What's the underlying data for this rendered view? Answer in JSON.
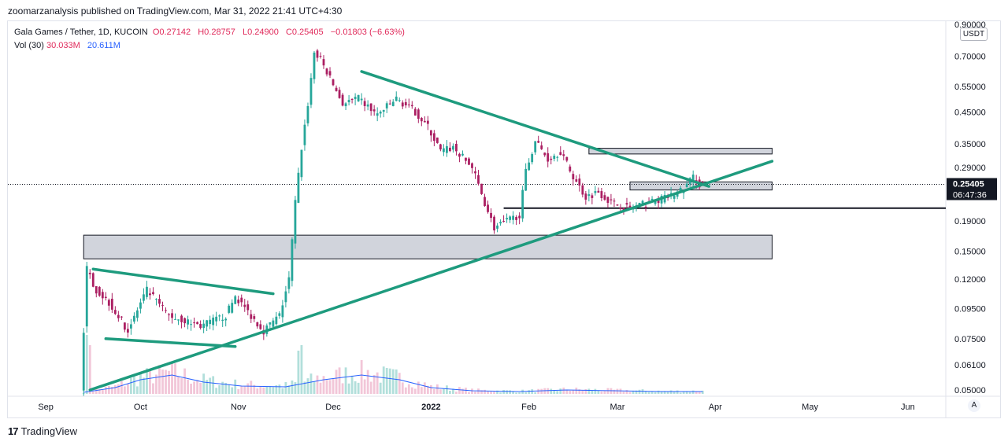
{
  "header": {
    "published": "zoomarzanalysis published on TradingView.com, Mar 31, 2022 21:41 UTC+4:30"
  },
  "legend": {
    "symbol": "Gala Games / Tether, 1D, KUCOIN",
    "open": "O0.27142",
    "high": "H0.28757",
    "low": "L0.24900",
    "close": "C0.25405",
    "change": "−0.01803 (−6.63%)",
    "volume_label": "Vol (30)",
    "volume_value": "30.033M",
    "volume_ma": "20.611M"
  },
  "price_axis": {
    "unit": "USDT",
    "last_price": "0.25405",
    "countdown": "06:47:36",
    "auto_label": "A"
  },
  "footer": {
    "brand": "TradingView",
    "mark": "17"
  },
  "colors": {
    "up": "#26a69a",
    "down": "#ab1f62",
    "trendline": "#1e9b7e",
    "zone_fill": "#d1d4dc",
    "volume_ma": "#2962ff",
    "price_badge": "#131722"
  },
  "chart_data": {
    "type": "candlestick",
    "title": "Gala Games / Tether, 1D, KUCOIN",
    "y_scale": "log",
    "ylim": [
      0.05,
      0.9
    ],
    "y_ticks": [
      "0.90000",
      "0.70000",
      "0.55000",
      "0.45000",
      "0.35000",
      "0.29000",
      "0.19000",
      "0.15000",
      "0.12000",
      "0.09500",
      "0.07500",
      "0.06100",
      "0.05000"
    ],
    "x_labels": [
      {
        "label": "Sep",
        "day": 0
      },
      {
        "label": "Oct",
        "day": 30
      },
      {
        "label": "Nov",
        "day": 61
      },
      {
        "label": "Dec",
        "day": 91
      },
      {
        "label": "2022",
        "day": 122
      },
      {
        "label": "Feb",
        "day": 153
      },
      {
        "label": "Mar",
        "day": 181
      },
      {
        "label": "Apr",
        "day": 212
      },
      {
        "label": "May",
        "day": 242
      },
      {
        "label": "Jun",
        "day": 273
      }
    ],
    "x_domain_days": [
      -12,
      285
    ],
    "start_day": 12,
    "last_price": 0.25405,
    "price_path": [
      {
        "day": 12,
        "price": 0.05
      },
      {
        "day": 14,
        "price": 0.13
      },
      {
        "day": 17,
        "price": 0.11
      },
      {
        "day": 21,
        "price": 0.1
      },
      {
        "day": 27,
        "price": 0.08
      },
      {
        "day": 33,
        "price": 0.11
      },
      {
        "day": 40,
        "price": 0.09
      },
      {
        "day": 50,
        "price": 0.083
      },
      {
        "day": 58,
        "price": 0.09
      },
      {
        "day": 61,
        "price": 0.105
      },
      {
        "day": 66,
        "price": 0.09
      },
      {
        "day": 70,
        "price": 0.08
      },
      {
        "day": 75,
        "price": 0.09
      },
      {
        "day": 78,
        "price": 0.12
      },
      {
        "day": 80,
        "price": 0.22
      },
      {
        "day": 82,
        "price": 0.34
      },
      {
        "day": 84,
        "price": 0.48
      },
      {
        "day": 86,
        "price": 0.72
      },
      {
        "day": 88,
        "price": 0.68
      },
      {
        "day": 92,
        "price": 0.56
      },
      {
        "day": 95,
        "price": 0.48
      },
      {
        "day": 100,
        "price": 0.5
      },
      {
        "day": 106,
        "price": 0.44
      },
      {
        "day": 112,
        "price": 0.5
      },
      {
        "day": 118,
        "price": 0.45
      },
      {
        "day": 122,
        "price": 0.4
      },
      {
        "day": 126,
        "price": 0.33
      },
      {
        "day": 130,
        "price": 0.34
      },
      {
        "day": 136,
        "price": 0.29
      },
      {
        "day": 140,
        "price": 0.22
      },
      {
        "day": 143,
        "price": 0.18
      },
      {
        "day": 147,
        "price": 0.19
      },
      {
        "day": 151,
        "price": 0.2
      },
      {
        "day": 153,
        "price": 0.28
      },
      {
        "day": 156,
        "price": 0.36
      },
      {
        "day": 160,
        "price": 0.31
      },
      {
        "day": 164,
        "price": 0.33
      },
      {
        "day": 168,
        "price": 0.27
      },
      {
        "day": 172,
        "price": 0.23
      },
      {
        "day": 176,
        "price": 0.24
      },
      {
        "day": 180,
        "price": 0.22
      },
      {
        "day": 186,
        "price": 0.21
      },
      {
        "day": 192,
        "price": 0.22
      },
      {
        "day": 198,
        "price": 0.23
      },
      {
        "day": 203,
        "price": 0.245
      },
      {
        "day": 206,
        "price": 0.27
      },
      {
        "day": 208,
        "price": 0.25405
      }
    ],
    "trendlines": [
      {
        "name": "main-descending",
        "from": {
          "day": 100,
          "price": 0.62
        },
        "to": {
          "day": 210,
          "price": 0.25
        }
      },
      {
        "name": "main-ascending",
        "from": {
          "day": 14,
          "price": 0.05
        },
        "to": {
          "day": 230,
          "price": 0.305
        }
      },
      {
        "name": "channel-top",
        "from": {
          "day": 15,
          "price": 0.13
        },
        "to": {
          "day": 72,
          "price": 0.107
        }
      },
      {
        "name": "channel-bottom",
        "from": {
          "day": 19,
          "price": 0.075
        },
        "to": {
          "day": 60,
          "price": 0.0705
        }
      }
    ],
    "zones": [
      {
        "name": "zone-0.15",
        "from_day": 12,
        "to_day": 230,
        "low": 0.141,
        "high": 0.17
      },
      {
        "name": "zone-0.25",
        "from_day": 185,
        "to_day": 230,
        "low": 0.243,
        "high": 0.259
      },
      {
        "name": "zone-0.33",
        "from_day": 172,
        "to_day": 230,
        "low": 0.323,
        "high": 0.338
      }
    ],
    "hlines": [
      {
        "name": "support-0.21",
        "from_day": 145,
        "to_day": 285,
        "price": 0.2105
      }
    ],
    "volume_ma_path": [
      {
        "day": 12,
        "v": 2
      },
      {
        "day": 22,
        "v": 8
      },
      {
        "day": 30,
        "v": 18
      },
      {
        "day": 40,
        "v": 24
      },
      {
        "day": 50,
        "v": 15
      },
      {
        "day": 62,
        "v": 10
      },
      {
        "day": 76,
        "v": 9
      },
      {
        "day": 88,
        "v": 18
      },
      {
        "day": 100,
        "v": 24
      },
      {
        "day": 112,
        "v": 18
      },
      {
        "day": 122,
        "v": 8
      },
      {
        "day": 135,
        "v": 4
      },
      {
        "day": 150,
        "v": 3
      },
      {
        "day": 165,
        "v": 5
      },
      {
        "day": 180,
        "v": 4
      },
      {
        "day": 195,
        "v": 3
      },
      {
        "day": 208,
        "v": 3
      }
    ]
  }
}
